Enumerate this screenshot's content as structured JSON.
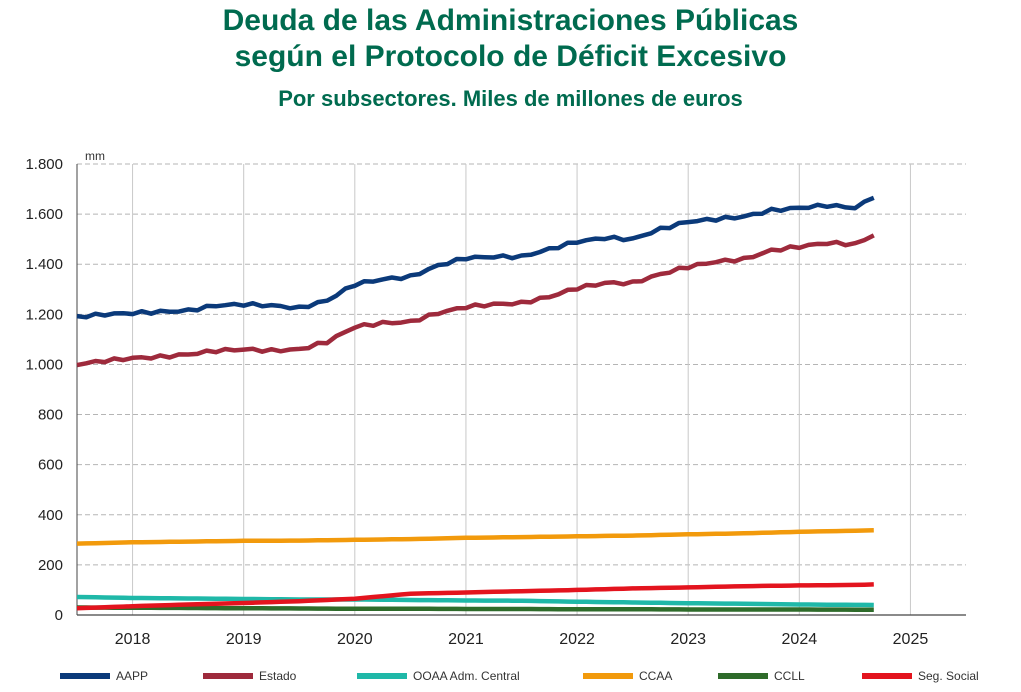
{
  "title": "Deuda de las Administraciones Públicas",
  "title2": "según el Protocolo de Déficit Excesivo",
  "subtitle": "Por subsectores. Miles de millones de euros",
  "colors": {
    "AAPP": "#0b3a7a",
    "Estado": "#9e2a3c",
    "OOAA": "#1fb8a8",
    "CCAA": "#f29a0c",
    "CCLL": "#2e6b2a",
    "SegSocial": "#e3141e"
  },
  "chart_data": {
    "type": "line",
    "title": "Deuda de las Administraciones Públicas según el Protocolo de Déficit Excesivo",
    "subtitle": "Por subsectores. Miles de millones de euros",
    "ylabel": "mm",
    "ylim": [
      0,
      1800
    ],
    "yticks": [
      0,
      200,
      400,
      600,
      800,
      1000,
      1200,
      1400,
      1600,
      1800
    ],
    "ytick_labels": [
      "0",
      "200",
      "400",
      "600",
      "800",
      "1.000",
      "1.200",
      "1.400",
      "1.600",
      "1.800"
    ],
    "xlim": [
      2018.0,
      2026.0
    ],
    "year_labels": [
      "2018",
      "2019",
      "2020",
      "2021",
      "2022",
      "2023",
      "2024",
      "2025"
    ],
    "grid": true,
    "legend_position": "bottom",
    "series": [
      {
        "name": "AAPP",
        "key": "AAPP",
        "points": [
          [
            2018.0,
            1190
          ],
          [
            2018.25,
            1200
          ],
          [
            2018.5,
            1205
          ],
          [
            2018.75,
            1210
          ],
          [
            2019.0,
            1215
          ],
          [
            2019.25,
            1235
          ],
          [
            2019.5,
            1240
          ],
          [
            2019.75,
            1235
          ],
          [
            2020.0,
            1225
          ],
          [
            2020.25,
            1255
          ],
          [
            2020.5,
            1320
          ],
          [
            2020.75,
            1340
          ],
          [
            2021.0,
            1350
          ],
          [
            2021.25,
            1395
          ],
          [
            2021.5,
            1425
          ],
          [
            2021.75,
            1430
          ],
          [
            2022.0,
            1430
          ],
          [
            2022.25,
            1460
          ],
          [
            2022.5,
            1490
          ],
          [
            2022.75,
            1505
          ],
          [
            2023.0,
            1500
          ],
          [
            2023.25,
            1540
          ],
          [
            2023.5,
            1570
          ],
          [
            2023.75,
            1580
          ],
          [
            2024.0,
            1590
          ],
          [
            2024.25,
            1615
          ],
          [
            2024.5,
            1625
          ],
          [
            2024.75,
            1635
          ],
          [
            2025.0,
            1625
          ],
          [
            2025.17,
            1665
          ]
        ]
      },
      {
        "name": "Estado",
        "key": "Estado",
        "points": [
          [
            2018.0,
            1000
          ],
          [
            2018.25,
            1015
          ],
          [
            2018.5,
            1025
          ],
          [
            2018.75,
            1030
          ],
          [
            2019.0,
            1040
          ],
          [
            2019.25,
            1055
          ],
          [
            2019.5,
            1060
          ],
          [
            2019.75,
            1055
          ],
          [
            2020.0,
            1060
          ],
          [
            2020.25,
            1090
          ],
          [
            2020.5,
            1150
          ],
          [
            2020.75,
            1165
          ],
          [
            2021.0,
            1170
          ],
          [
            2021.25,
            1205
          ],
          [
            2021.5,
            1230
          ],
          [
            2021.75,
            1240
          ],
          [
            2022.0,
            1245
          ],
          [
            2022.25,
            1270
          ],
          [
            2022.5,
            1305
          ],
          [
            2022.75,
            1325
          ],
          [
            2023.0,
            1325
          ],
          [
            2023.25,
            1360
          ],
          [
            2023.5,
            1390
          ],
          [
            2023.75,
            1410
          ],
          [
            2024.0,
            1420
          ],
          [
            2024.25,
            1455
          ],
          [
            2024.5,
            1470
          ],
          [
            2024.75,
            1485
          ],
          [
            2025.0,
            1480
          ],
          [
            2025.17,
            1515
          ]
        ]
      },
      {
        "name": "OOAA Adm. Central",
        "key": "OOAA",
        "points": [
          [
            2018.0,
            72
          ],
          [
            2018.5,
            68
          ],
          [
            2019.0,
            66
          ],
          [
            2019.5,
            64
          ],
          [
            2020.0,
            62
          ],
          [
            2020.5,
            62
          ],
          [
            2021.0,
            60
          ],
          [
            2021.5,
            58
          ],
          [
            2022.0,
            57
          ],
          [
            2022.5,
            53
          ],
          [
            2023.0,
            50
          ],
          [
            2023.5,
            47
          ],
          [
            2024.0,
            45
          ],
          [
            2024.5,
            42
          ],
          [
            2025.17,
            40
          ]
        ]
      },
      {
        "name": "CCAA",
        "key": "CCAA",
        "points": [
          [
            2018.0,
            285
          ],
          [
            2018.5,
            290
          ],
          [
            2019.0,
            293
          ],
          [
            2019.5,
            296
          ],
          [
            2020.0,
            297
          ],
          [
            2020.5,
            300
          ],
          [
            2021.0,
            303
          ],
          [
            2021.5,
            308
          ],
          [
            2022.0,
            311
          ],
          [
            2022.5,
            314
          ],
          [
            2023.0,
            317
          ],
          [
            2023.5,
            322
          ],
          [
            2024.0,
            326
          ],
          [
            2024.5,
            332
          ],
          [
            2025.17,
            338
          ]
        ]
      },
      {
        "name": "CCLL",
        "key": "CCLL",
        "points": [
          [
            2018.0,
            30
          ],
          [
            2018.5,
            29
          ],
          [
            2019.0,
            28
          ],
          [
            2019.5,
            27
          ],
          [
            2020.0,
            26
          ],
          [
            2020.5,
            25
          ],
          [
            2021.0,
            25
          ],
          [
            2021.5,
            24
          ],
          [
            2022.0,
            24
          ],
          [
            2022.5,
            23
          ],
          [
            2023.0,
            23
          ],
          [
            2023.5,
            22
          ],
          [
            2024.0,
            22
          ],
          [
            2024.5,
            22
          ],
          [
            2025.17,
            21
          ]
        ]
      },
      {
        "name": "Seg. Social",
        "key": "SegSocial",
        "points": [
          [
            2018.0,
            27
          ],
          [
            2018.5,
            35
          ],
          [
            2019.0,
            42
          ],
          [
            2019.5,
            48
          ],
          [
            2020.0,
            55
          ],
          [
            2020.5,
            65
          ],
          [
            2020.75,
            75
          ],
          [
            2021.0,
            85
          ],
          [
            2021.5,
            90
          ],
          [
            2022.0,
            95
          ],
          [
            2022.5,
            100
          ],
          [
            2023.0,
            106
          ],
          [
            2023.5,
            110
          ],
          [
            2024.0,
            115
          ],
          [
            2024.5,
            118
          ],
          [
            2025.0,
            120
          ],
          [
            2025.17,
            122
          ]
        ]
      }
    ]
  }
}
